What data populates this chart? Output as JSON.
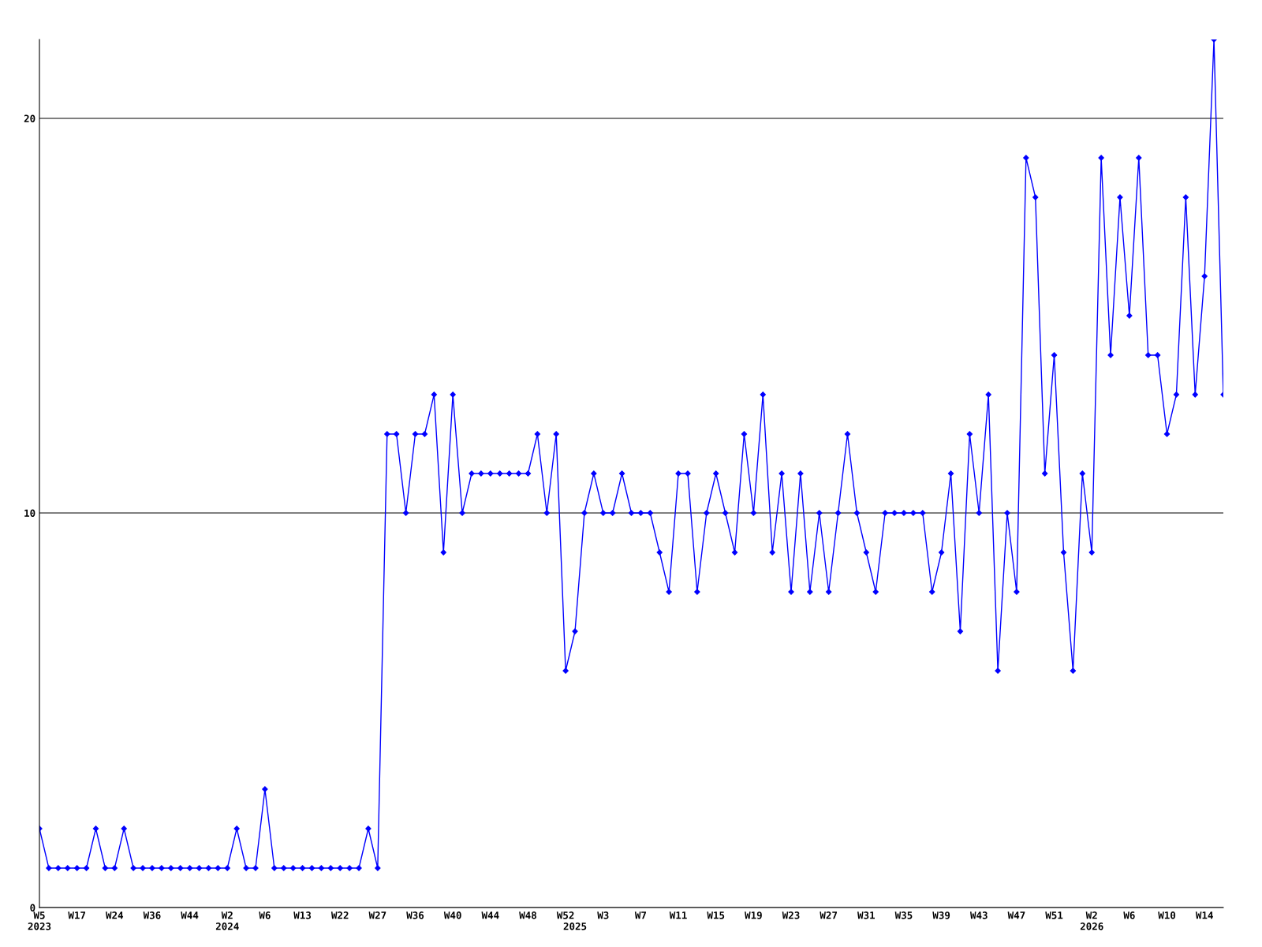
{
  "chart_data": {
    "type": "line",
    "categories": [
      "W5\n2023",
      null,
      null,
      null,
      "W17",
      null,
      null,
      null,
      "W24",
      null,
      null,
      null,
      "W36",
      null,
      null,
      null,
      "W44",
      null,
      null,
      null,
      "W2\n2024",
      null,
      null,
      null,
      "W6",
      null,
      null,
      null,
      "W13",
      null,
      null,
      null,
      "W22",
      null,
      null,
      null,
      "W27",
      null,
      null,
      null,
      "W36",
      null,
      null,
      null,
      "W40",
      null,
      null,
      null,
      "W44",
      null,
      null,
      null,
      "W48",
      null,
      null,
      null,
      "W52",
      "\n2025",
      null,
      null,
      "W3",
      null,
      null,
      null,
      "W7",
      null,
      null,
      null,
      "W11",
      null,
      null,
      null,
      "W15",
      null,
      null,
      null,
      "W19",
      null,
      null,
      null,
      "W23",
      null,
      null,
      null,
      "W27",
      null,
      null,
      null,
      "W31",
      null,
      null,
      null,
      "W35",
      null,
      null,
      null,
      "W39",
      null,
      null,
      null,
      "W43",
      null,
      null,
      null,
      "W47",
      null,
      null,
      null,
      "W51",
      null,
      null,
      null,
      "W2\n2026",
      null,
      null,
      null,
      "W6",
      null,
      null,
      null,
      "W10",
      null,
      null,
      null,
      "W14",
      null,
      null
    ],
    "series": [
      {
        "color": "#0000ff",
        "values": [
          2,
          1,
          1,
          1,
          1,
          1,
          2,
          1,
          1,
          2,
          1,
          1,
          1,
          1,
          1,
          1,
          1,
          1,
          1,
          1,
          1,
          2,
          1,
          1,
          3,
          1,
          1,
          1,
          1,
          1,
          1,
          1,
          1,
          1,
          1,
          2,
          1,
          12,
          12,
          10,
          12,
          12,
          13,
          9,
          13,
          10,
          11,
          11,
          11,
          11,
          11,
          11,
          11,
          12,
          10,
          12,
          6,
          7,
          10,
          11,
          10,
          10,
          11,
          10,
          10,
          10,
          9,
          8,
          11,
          11,
          8,
          10,
          11,
          10,
          9,
          12,
          10,
          13,
          9,
          11,
          8,
          11,
          8,
          10,
          8,
          10,
          12,
          10,
          9,
          8,
          10,
          10,
          10,
          10,
          10,
          8,
          9,
          11,
          7,
          12,
          10,
          13,
          6,
          10,
          8,
          19,
          18,
          11,
          14,
          9,
          6,
          11,
          9,
          19,
          14,
          18,
          15,
          19,
          14,
          14,
          12,
          13,
          18,
          13,
          16,
          22,
          13
        ]
      }
    ],
    "ylim": [
      0,
      22
    ],
    "yticks": [
      0,
      10,
      20
    ],
    "grid": "y",
    "marker": "diamond",
    "line_style": "solid",
    "legend": false
  }
}
